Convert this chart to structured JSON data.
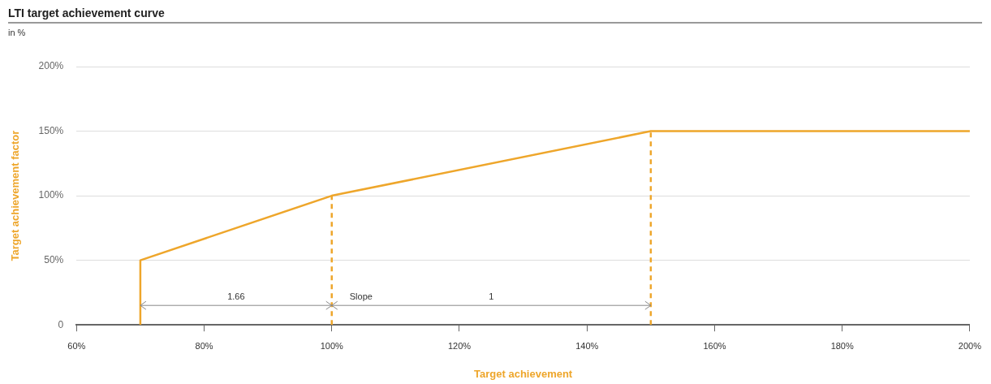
{
  "chart_data": {
    "type": "line",
    "title": "LTI target achievement curve",
    "subtitle": "in %",
    "xlabel": "Target achievement",
    "ylabel": "Target achievement factor",
    "series": [
      {
        "color": "#eea62b",
        "x": [
          70,
          70,
          100,
          150,
          200
        ],
        "values": [
          0,
          50,
          100,
          150,
          150
        ]
      },
      {
        "color": "#eea62b",
        "line_style": "dashed",
        "x": [
          100,
          100
        ],
        "values": [
          0,
          100
        ]
      },
      {
        "color": "#eea62b",
        "line_style": "dashed",
        "x": [
          150,
          150
        ],
        "values": [
          0,
          150
        ]
      }
    ],
    "annotations": [
      "1.66",
      "Slope",
      "1"
    ],
    "xlim": [
      60,
      200
    ],
    "xticks": [
      {
        "value": 60,
        "label": "60%"
      },
      {
        "value": 80,
        "label": "80%"
      },
      {
        "value": 100,
        "label": "100%"
      },
      {
        "value": 120,
        "label": "120%"
      },
      {
        "value": 140,
        "label": "140%"
      },
      {
        "value": 160,
        "label": "160%"
      },
      {
        "value": 180,
        "label": "180%"
      },
      {
        "value": 200,
        "label": "200%"
      }
    ],
    "ylim": [
      0,
      200
    ],
    "yticks": [
      0,
      {
        "value": 50,
        "label": "50%"
      },
      {
        "value": 100,
        "label": "100%"
      },
      {
        "value": 150,
        "label": "150%"
      },
      {
        "value": 200,
        "label": "200%"
      }
    ],
    "grid": "y",
    "legend": false,
    "marker": "none",
    "line_style": "solid"
  }
}
